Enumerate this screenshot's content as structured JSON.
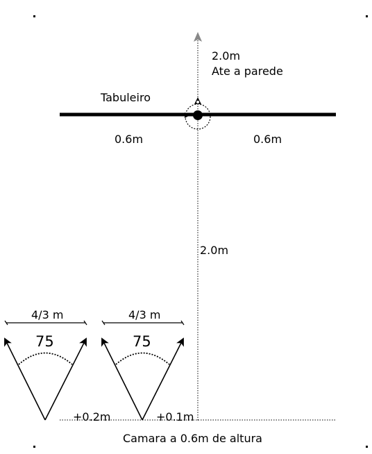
{
  "labels": {
    "wall_distance": "2.0m",
    "wall_caption": "Ate a parede",
    "board": "Tabuleiro",
    "half_width_left": "0.6m",
    "half_width_right": "0.6m",
    "camera_distance": "2.0m",
    "camera_left_width": "4/3 m",
    "camera_left_angle": "75",
    "camera_left_offset": "+0.2m",
    "camera_right_width": "4/3 m",
    "camera_right_angle": "75",
    "camera_right_offset": "+0.1m",
    "camera_height": "Camara a 0.6m de altura"
  },
  "colors": {
    "line": "#000000",
    "axis_arrow": "#888888",
    "background": "#ffffff"
  }
}
